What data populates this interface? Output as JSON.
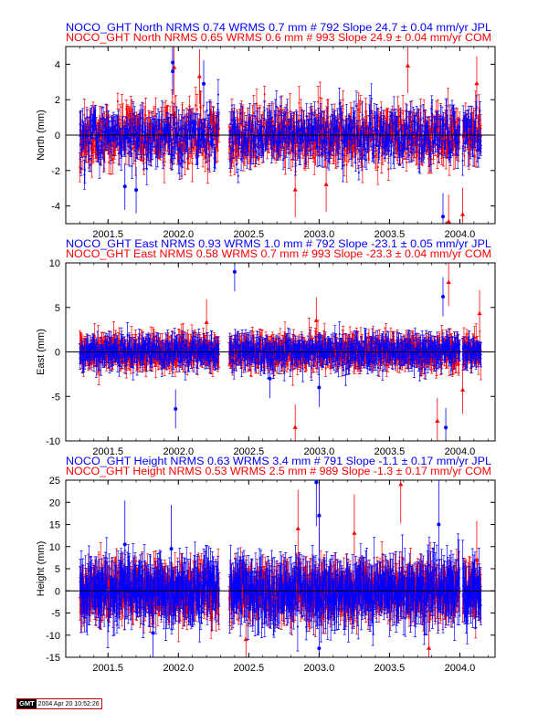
{
  "colors": {
    "jpl": "#0000ff",
    "com": "#ff0000",
    "axis": "#000000",
    "zero": "#000000"
  },
  "chart_data": [
    {
      "type": "scatter",
      "panel": "north",
      "titles": [
        {
          "text": "NOCO_GHT North NRMS 0.74 WRMS  0.7 mm # 792 Slope   24.7 ±  0.04 mm/yr JPL",
          "series": "JPL"
        },
        {
          "text": "NOCO_GHT North NRMS 0.65 WRMS  0.6 mm # 993 Slope   24.9 ±  0.04 mm/yr COM",
          "series": "COM"
        }
      ],
      "ylabel": "North (mm)",
      "xlim": [
        2001.2,
        2004.25
      ],
      "ylim": [
        -5,
        5
      ],
      "xticks": [
        2001.5,
        2002.0,
        2002.5,
        2003.0,
        2003.5,
        2004.0
      ],
      "xticklabels": [
        "2001.5",
        "2002.0",
        "2002.5",
        "2003.0",
        "2003.5",
        "2004.0"
      ],
      "yticks": [
        -4,
        -2,
        0,
        2,
        4
      ],
      "yticklabels": [
        "-4",
        "-2",
        "0",
        "2",
        "4"
      ],
      "series": [
        {
          "name": "JPL",
          "points": 792,
          "wrms": 0.7,
          "sigma": 0.6,
          "spread": 1.3,
          "outliers": [
            [
              2001.96,
              3.6
            ],
            [
              2001.96,
              4.1
            ],
            [
              2002.18,
              2.9
            ],
            [
              2001.7,
              -3.1
            ],
            [
              2001.62,
              -2.9
            ],
            [
              2003.88,
              -4.6
            ]
          ]
        },
        {
          "name": "COM",
          "points": 993,
          "wrms": 0.6,
          "sigma": 0.7,
          "spread": 1.2,
          "outliers": [
            [
              2001.97,
              3.8
            ],
            [
              2002.15,
              3.3
            ],
            [
              2002.83,
              -3.1
            ],
            [
              2003.05,
              -2.8
            ],
            [
              2003.63,
              3.9
            ],
            [
              2003.92,
              -4.9
            ],
            [
              2004.02,
              -4.5
            ],
            [
              2004.12,
              2.9
            ]
          ]
        }
      ],
      "gaps": [
        [
          2002.29,
          2002.36
        ],
        [
          2004.0,
          2004.02
        ]
      ],
      "range": [
        2001.3,
        2004.15
      ]
    },
    {
      "type": "scatter",
      "panel": "east",
      "titles": [
        {
          "text": "NOCO_GHT East NRMS 0.93 WRMS  1.0 mm # 792 Slope  -23.1 ±  0.05 mm/yr JPL",
          "series": "JPL"
        },
        {
          "text": "NOCO_GHT East NRMS 0.58 WRMS  0.7 mm # 993 Slope  -23.3 ±  0.04 mm/yr COM",
          "series": "COM"
        }
      ],
      "ylabel": "East (mm)",
      "xlim": [
        2001.2,
        2004.25
      ],
      "ylim": [
        -10,
        10
      ],
      "xticks": [
        2001.5,
        2002.0,
        2002.5,
        2003.0,
        2003.5,
        2004.0
      ],
      "xticklabels": [
        "2001.5",
        "2002.0",
        "2002.5",
        "2003.0",
        "2003.5",
        "2004.0"
      ],
      "yticks": [
        -10,
        -5,
        0,
        5,
        10
      ],
      "yticklabels": [
        "-10",
        "-5",
        "0",
        "5",
        "10"
      ],
      "series": [
        {
          "name": "JPL",
          "points": 792,
          "wrms": 1.0,
          "sigma": 1.0,
          "spread": 1.4,
          "outliers": [
            [
              2002.4,
              9.0
            ],
            [
              2001.98,
              -6.4
            ],
            [
              2003.9,
              -8.5
            ],
            [
              2003.88,
              6.2
            ],
            [
              2003.0,
              -4.0
            ],
            [
              2002.65,
              -3.0
            ]
          ]
        },
        {
          "name": "COM",
          "points": 993,
          "wrms": 0.7,
          "sigma": 1.2,
          "spread": 1.2,
          "outliers": [
            [
              2002.83,
              -8.5
            ],
            [
              2003.84,
              -7.8
            ],
            [
              2003.92,
              7.8
            ],
            [
              2004.02,
              -4.3
            ],
            [
              2002.2,
              3.3
            ],
            [
              2004.14,
              4.3
            ],
            [
              2002.98,
              3.5
            ]
          ]
        }
      ],
      "gaps": [
        [
          2002.29,
          2002.36
        ],
        [
          2004.0,
          2004.02
        ]
      ],
      "range": [
        2001.3,
        2004.15
      ]
    },
    {
      "type": "scatter",
      "panel": "height",
      "titles": [
        {
          "text": "NOCO_GHT Height NRMS 0.63 WRMS  3.4 mm # 791 Slope   -1.1 ±  0.17 mm/yr JPL",
          "series": "JPL"
        },
        {
          "text": "NOCO_GHT Height NRMS 0.53 WRMS  2.5 mm # 989 Slope   -1.3 ±  0.17 mm/yr COM",
          "series": "COM"
        }
      ],
      "ylabel": "Height (mm)",
      "xlim": [
        2001.2,
        2004.25
      ],
      "ylim": [
        -15,
        25
      ],
      "xticks": [
        2001.5,
        2002.0,
        2002.5,
        2003.0,
        2003.5,
        2004.0
      ],
      "xticklabels": [
        "2001.5",
        "2002.0",
        "2002.5",
        "2003.0",
        "2003.5",
        "2004.0"
      ],
      "yticks": [
        -15,
        -10,
        -5,
        0,
        5,
        10,
        15,
        20,
        25
      ],
      "yticklabels": [
        "-15",
        "-10",
        "-5",
        "0",
        "5",
        "10",
        "15",
        "20",
        "25"
      ],
      "series": [
        {
          "name": "JPL",
          "points": 791,
          "wrms": 3.4,
          "sigma": 4.5,
          "spread": 4.6,
          "outliers": [
            [
              2002.98,
              24.5
            ],
            [
              2003.0,
              17.0
            ],
            [
              2001.62,
              10.5
            ],
            [
              2001.95,
              9.5
            ],
            [
              2003.0,
              -13.0
            ],
            [
              2001.82,
              -9.5
            ],
            [
              2003.85,
              15.0
            ]
          ]
        },
        {
          "name": "COM",
          "points": 989,
          "wrms": 2.5,
          "sigma": 4.0,
          "spread": 3.6,
          "outliers": [
            [
              2002.85,
              14.0
            ],
            [
              2003.58,
              24.0
            ],
            [
              2003.0,
              17.0
            ],
            [
              2002.48,
              -11.0
            ],
            [
              2004.12,
              7.0
            ],
            [
              2003.78,
              -13.0
            ],
            [
              2003.25,
              13.0
            ]
          ]
        }
      ],
      "gaps": [
        [
          2002.29,
          2002.36
        ],
        [
          2004.0,
          2004.02
        ]
      ],
      "range": [
        2001.3,
        2004.15
      ]
    }
  ],
  "footer": {
    "logo": "GMT",
    "timestamp": "2004 Apr 20 10:52:26"
  }
}
